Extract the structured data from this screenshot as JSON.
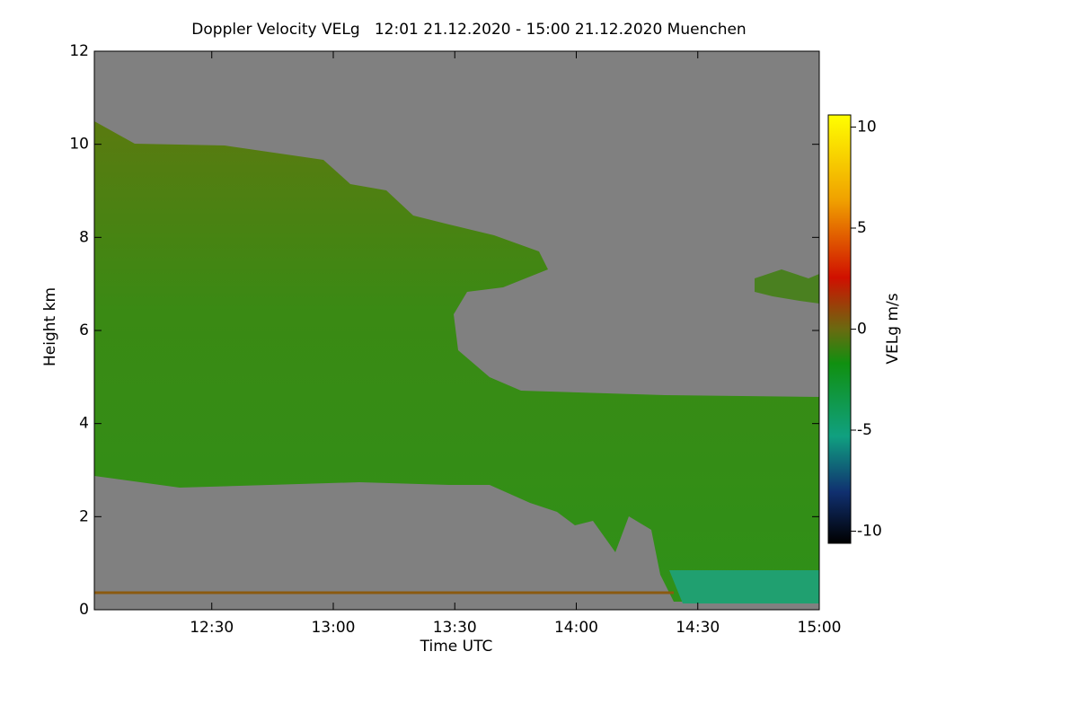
{
  "chart_data": {
    "type": "heatmap",
    "title": "Doppler Velocity VELg   12:01 21.12.2020 - 15:00 21.12.2020 Muenchen",
    "xlabel": "Time UTC",
    "ylabel": "Height km",
    "xlim": [
      12.0167,
      15.0
    ],
    "xticks": [
      {
        "value": 12.5,
        "label": "12:30"
      },
      {
        "value": 13.0,
        "label": "13:00"
      },
      {
        "value": 13.5,
        "label": "13:30"
      },
      {
        "value": 14.0,
        "label": "14:00"
      },
      {
        "value": 14.5,
        "label": "14:30"
      },
      {
        "value": 15.0,
        "label": "15:00"
      }
    ],
    "ylim": [
      0,
      12
    ],
    "yticks": [
      0,
      2,
      4,
      6,
      8,
      10,
      12
    ],
    "colorbar": {
      "label": "VELg m/s",
      "lim": [
        -10.6,
        10.6
      ],
      "ticks": [
        -10,
        -5,
        0,
        5,
        10
      ]
    }
  }
}
